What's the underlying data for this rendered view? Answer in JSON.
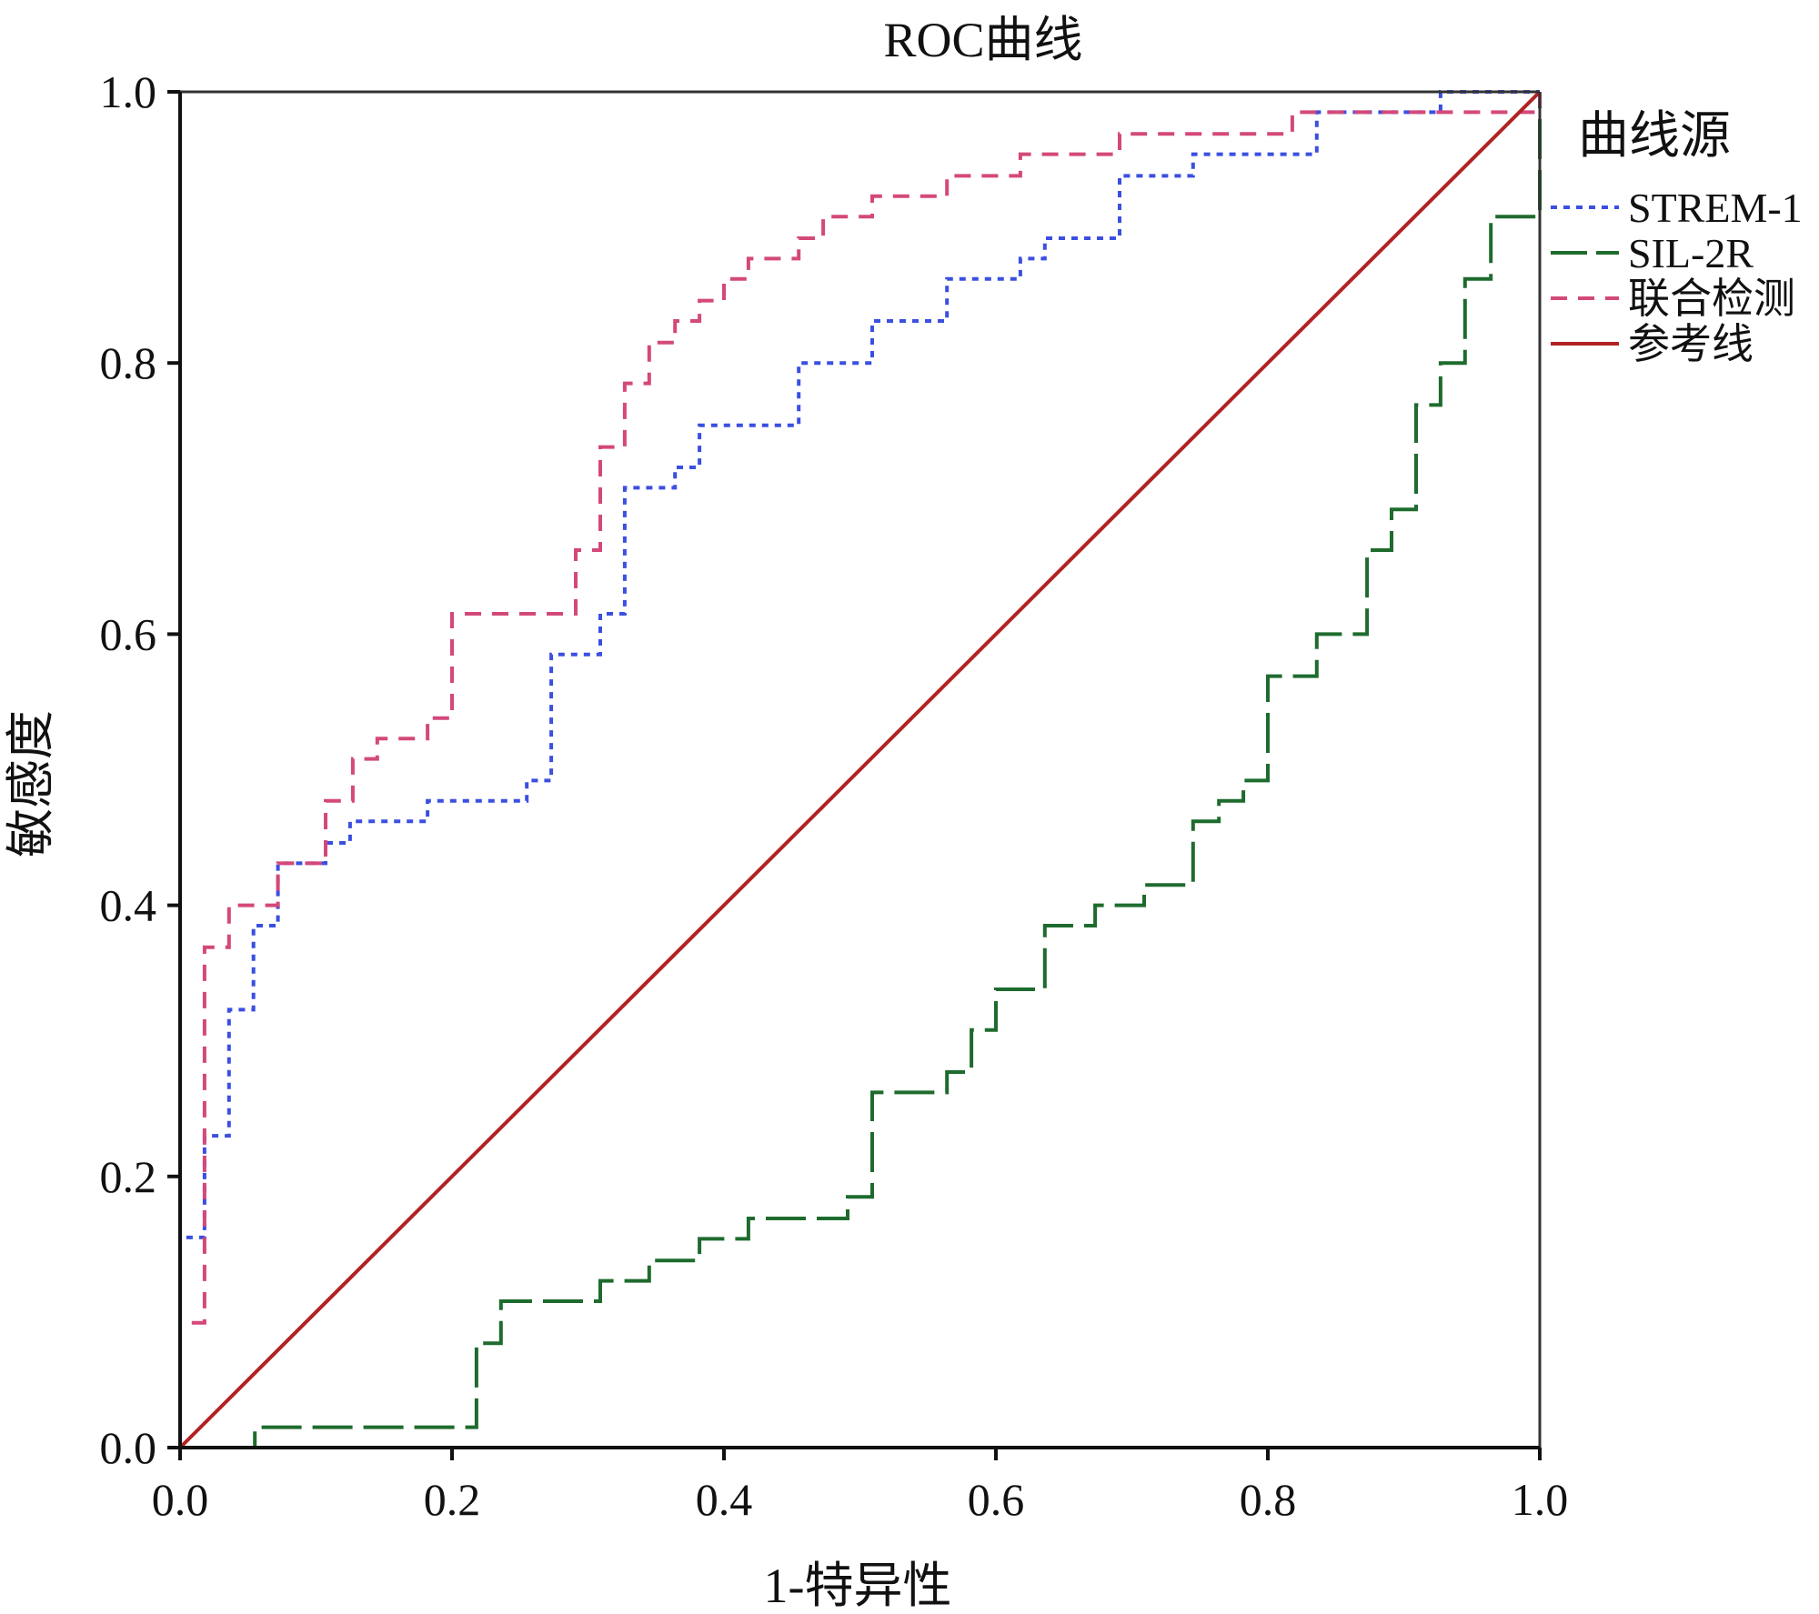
{
  "chart_data": {
    "type": "line",
    "title": "ROC曲线",
    "xlabel": "1-特异性",
    "ylabel": "敏感度",
    "xlim": [
      0,
      1
    ],
    "ylim": [
      0,
      1
    ],
    "xticks": [
      "0.0",
      "0.2",
      "0.4",
      "0.6",
      "0.8",
      "1.0"
    ],
    "yticks": [
      "0.0",
      "0.2",
      "0.4",
      "0.6",
      "0.8",
      "1.0"
    ],
    "grid": false,
    "legend": {
      "title": "曲线源",
      "position": "right"
    },
    "series": [
      {
        "name": "STREM-1",
        "color": "#3b4fe0",
        "style": "dotted",
        "points": [
          [
            0.0,
            0.0
          ],
          [
            0.0,
            0.155
          ],
          [
            0.018,
            0.155
          ],
          [
            0.018,
            0.23
          ],
          [
            0.036,
            0.23
          ],
          [
            0.036,
            0.323
          ],
          [
            0.054,
            0.323
          ],
          [
            0.054,
            0.385
          ],
          [
            0.072,
            0.385
          ],
          [
            0.072,
            0.431
          ],
          [
            0.107,
            0.431
          ],
          [
            0.107,
            0.446
          ],
          [
            0.125,
            0.446
          ],
          [
            0.125,
            0.462
          ],
          [
            0.182,
            0.462
          ],
          [
            0.182,
            0.477
          ],
          [
            0.255,
            0.477
          ],
          [
            0.255,
            0.492
          ],
          [
            0.273,
            0.492
          ],
          [
            0.273,
            0.585
          ],
          [
            0.309,
            0.585
          ],
          [
            0.309,
            0.615
          ],
          [
            0.327,
            0.615
          ],
          [
            0.327,
            0.708
          ],
          [
            0.364,
            0.708
          ],
          [
            0.364,
            0.723
          ],
          [
            0.382,
            0.723
          ],
          [
            0.382,
            0.754
          ],
          [
            0.455,
            0.754
          ],
          [
            0.455,
            0.8
          ],
          [
            0.509,
            0.8
          ],
          [
            0.509,
            0.831
          ],
          [
            0.564,
            0.831
          ],
          [
            0.564,
            0.862
          ],
          [
            0.618,
            0.862
          ],
          [
            0.618,
            0.877
          ],
          [
            0.636,
            0.877
          ],
          [
            0.636,
            0.892
          ],
          [
            0.691,
            0.892
          ],
          [
            0.691,
            0.938
          ],
          [
            0.745,
            0.938
          ],
          [
            0.745,
            0.954
          ],
          [
            0.836,
            0.954
          ],
          [
            0.836,
            0.985
          ],
          [
            0.927,
            0.985
          ],
          [
            0.927,
            1.0
          ],
          [
            1.0,
            1.0
          ]
        ]
      },
      {
        "name": "SIL-2R",
        "color": "#1e6b2e",
        "style": "long-dash",
        "points": [
          [
            0.0,
            0.0
          ],
          [
            0.055,
            0.0
          ],
          [
            0.055,
            0.015
          ],
          [
            0.218,
            0.015
          ],
          [
            0.218,
            0.077
          ],
          [
            0.236,
            0.077
          ],
          [
            0.236,
            0.108
          ],
          [
            0.309,
            0.108
          ],
          [
            0.309,
            0.123
          ],
          [
            0.345,
            0.123
          ],
          [
            0.345,
            0.138
          ],
          [
            0.382,
            0.138
          ],
          [
            0.382,
            0.154
          ],
          [
            0.418,
            0.154
          ],
          [
            0.418,
            0.169
          ],
          [
            0.491,
            0.169
          ],
          [
            0.491,
            0.185
          ],
          [
            0.509,
            0.185
          ],
          [
            0.509,
            0.262
          ],
          [
            0.564,
            0.262
          ],
          [
            0.564,
            0.277
          ],
          [
            0.582,
            0.277
          ],
          [
            0.582,
            0.308
          ],
          [
            0.6,
            0.308
          ],
          [
            0.6,
            0.338
          ],
          [
            0.636,
            0.338
          ],
          [
            0.636,
            0.385
          ],
          [
            0.673,
            0.385
          ],
          [
            0.673,
            0.4
          ],
          [
            0.709,
            0.4
          ],
          [
            0.709,
            0.415
          ],
          [
            0.745,
            0.415
          ],
          [
            0.745,
            0.462
          ],
          [
            0.764,
            0.462
          ],
          [
            0.764,
            0.477
          ],
          [
            0.782,
            0.477
          ],
          [
            0.782,
            0.492
          ],
          [
            0.8,
            0.492
          ],
          [
            0.8,
            0.569
          ],
          [
            0.836,
            0.569
          ],
          [
            0.836,
            0.6
          ],
          [
            0.873,
            0.6
          ],
          [
            0.873,
            0.662
          ],
          [
            0.891,
            0.662
          ],
          [
            0.891,
            0.692
          ],
          [
            0.909,
            0.692
          ],
          [
            0.909,
            0.769
          ],
          [
            0.927,
            0.769
          ],
          [
            0.927,
            0.8
          ],
          [
            0.945,
            0.8
          ],
          [
            0.945,
            0.862
          ],
          [
            0.964,
            0.862
          ],
          [
            0.964,
            0.908
          ],
          [
            1.0,
            0.908
          ],
          [
            1.0,
            1.0
          ]
        ]
      },
      {
        "name": "联合检测",
        "color": "#d4487a",
        "style": "dashed",
        "points": [
          [
            0.0,
            0.0
          ],
          [
            0.0,
            0.092
          ],
          [
            0.018,
            0.092
          ],
          [
            0.018,
            0.369
          ],
          [
            0.036,
            0.369
          ],
          [
            0.036,
            0.4
          ],
          [
            0.072,
            0.4
          ],
          [
            0.072,
            0.431
          ],
          [
            0.107,
            0.431
          ],
          [
            0.107,
            0.477
          ],
          [
            0.127,
            0.477
          ],
          [
            0.127,
            0.508
          ],
          [
            0.145,
            0.508
          ],
          [
            0.145,
            0.523
          ],
          [
            0.182,
            0.523
          ],
          [
            0.182,
            0.538
          ],
          [
            0.2,
            0.538
          ],
          [
            0.2,
            0.615
          ],
          [
            0.291,
            0.615
          ],
          [
            0.291,
            0.662
          ],
          [
            0.309,
            0.662
          ],
          [
            0.309,
            0.738
          ],
          [
            0.327,
            0.738
          ],
          [
            0.327,
            0.785
          ],
          [
            0.345,
            0.785
          ],
          [
            0.345,
            0.815
          ],
          [
            0.364,
            0.815
          ],
          [
            0.364,
            0.831
          ],
          [
            0.382,
            0.831
          ],
          [
            0.382,
            0.846
          ],
          [
            0.4,
            0.846
          ],
          [
            0.4,
            0.862
          ],
          [
            0.418,
            0.862
          ],
          [
            0.418,
            0.877
          ],
          [
            0.455,
            0.877
          ],
          [
            0.455,
            0.892
          ],
          [
            0.473,
            0.892
          ],
          [
            0.473,
            0.908
          ],
          [
            0.509,
            0.908
          ],
          [
            0.509,
            0.923
          ],
          [
            0.564,
            0.923
          ],
          [
            0.564,
            0.938
          ],
          [
            0.618,
            0.938
          ],
          [
            0.618,
            0.954
          ],
          [
            0.691,
            0.954
          ],
          [
            0.691,
            0.969
          ],
          [
            0.818,
            0.969
          ],
          [
            0.818,
            0.985
          ],
          [
            1.0,
            0.985
          ],
          [
            1.0,
            1.0
          ]
        ]
      },
      {
        "name": "参考线",
        "color": "#b22222",
        "style": "solid",
        "points": [
          [
            0,
            0
          ],
          [
            1,
            1
          ]
        ]
      }
    ]
  }
}
